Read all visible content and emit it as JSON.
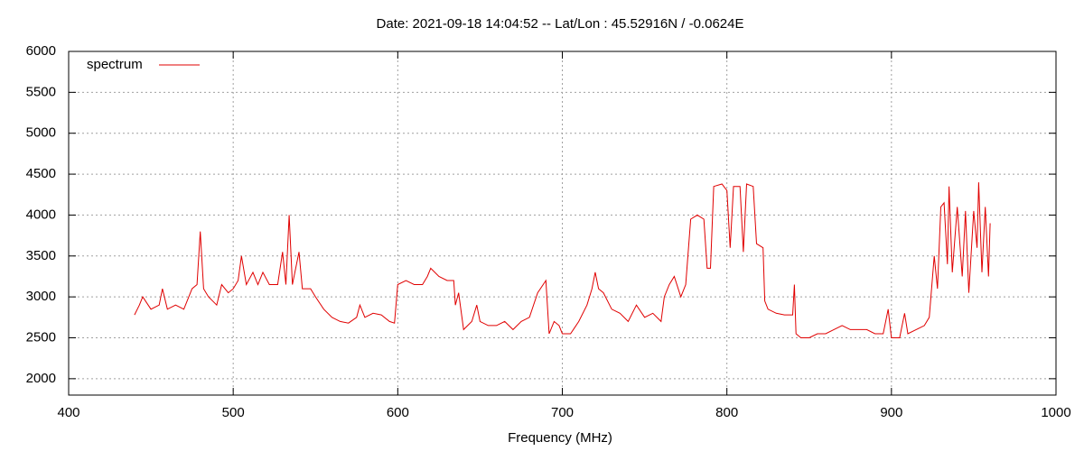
{
  "chart_data": {
    "type": "line",
    "title": "Date: 2021-09-18 14:04:52  --  Lat/Lon : 45.52916N / -0.0624E",
    "x_label": "Frequency (MHz)",
    "xlim": [
      400,
      1000
    ],
    "xticks": [
      400,
      500,
      600,
      700,
      800,
      900,
      1000
    ],
    "ylim": [
      1800,
      6000
    ],
    "yticks": [
      2000,
      2500,
      3000,
      3500,
      4000,
      4500,
      5000,
      5500,
      6000
    ],
    "grid": true,
    "legend": "top-left",
    "series": [
      {
        "name": "spectrum",
        "color": "#e00000",
        "x": [
          440,
          443,
          445,
          450,
          455,
          457,
          460,
          465,
          470,
          475,
          478,
          480,
          482,
          485,
          490,
          493,
          497,
          500,
          503,
          505,
          508,
          512,
          515,
          518,
          522,
          527,
          530,
          532,
          534,
          536,
          540,
          542,
          547,
          550,
          555,
          560,
          565,
          570,
          575,
          577,
          580,
          585,
          590,
          595,
          598,
          600,
          605,
          610,
          615,
          618,
          620,
          625,
          630,
          634,
          635,
          637,
          640,
          645,
          648,
          650,
          655,
          660,
          665,
          670,
          675,
          680,
          685,
          690,
          692,
          695,
          698,
          700,
          705,
          710,
          715,
          718,
          720,
          722,
          725,
          730,
          735,
          740,
          745,
          750,
          755,
          760,
          762,
          765,
          768,
          772,
          775,
          778,
          782,
          786,
          788,
          790,
          792,
          797,
          800,
          802,
          804,
          808,
          810,
          812,
          816,
          818,
          822,
          823,
          825,
          830,
          835,
          840,
          841,
          842,
          845,
          850,
          855,
          860,
          865,
          870,
          875,
          880,
          885,
          890,
          895,
          898,
          900,
          905,
          908,
          910,
          915,
          920,
          923,
          926,
          928,
          930,
          932,
          934,
          935,
          937,
          940,
          943,
          945,
          947,
          950,
          952,
          953,
          955,
          957,
          959,
          960
        ],
        "values": [
          2780,
          2900,
          3000,
          2850,
          2900,
          3100,
          2850,
          2900,
          2850,
          3100,
          3150,
          3800,
          3100,
          3000,
          2900,
          3150,
          3050,
          3100,
          3200,
          3500,
          3150,
          3300,
          3150,
          3300,
          3150,
          3150,
          3550,
          3150,
          4000,
          3150,
          3550,
          3100,
          3100,
          3000,
          2850,
          2750,
          2700,
          2680,
          2750,
          2900,
          2750,
          2800,
          2780,
          2700,
          2680,
          3150,
          3200,
          3150,
          3150,
          3250,
          3350,
          3250,
          3200,
          3200,
          2900,
          3050,
          2600,
          2700,
          2900,
          2700,
          2650,
          2650,
          2700,
          2600,
          2700,
          2750,
          3050,
          3200,
          2550,
          2700,
          2650,
          2550,
          2550,
          2700,
          2900,
          3100,
          3300,
          3100,
          3050,
          2850,
          2800,
          2700,
          2900,
          2750,
          2800,
          2700,
          3000,
          3150,
          3250,
          3000,
          3150,
          3950,
          4000,
          3950,
          3350,
          3350,
          4350,
          4380,
          4300,
          3600,
          4350,
          4350,
          3550,
          4380,
          4350,
          3650,
          3600,
          2950,
          2850,
          2800,
          2780,
          2780,
          3150,
          2550,
          2500,
          2500,
          2550,
          2550,
          2600,
          2650,
          2600,
          2600,
          2600,
          2550,
          2550,
          2850,
          2500,
          2500,
          2800,
          2550,
          2600,
          2650,
          2750,
          3500,
          3100,
          4100,
          4150,
          3400,
          4350,
          3300,
          4100,
          3250,
          4050,
          3050,
          4050,
          3600,
          4400,
          3300,
          4100,
          3250,
          3900
        ]
      }
    ]
  }
}
